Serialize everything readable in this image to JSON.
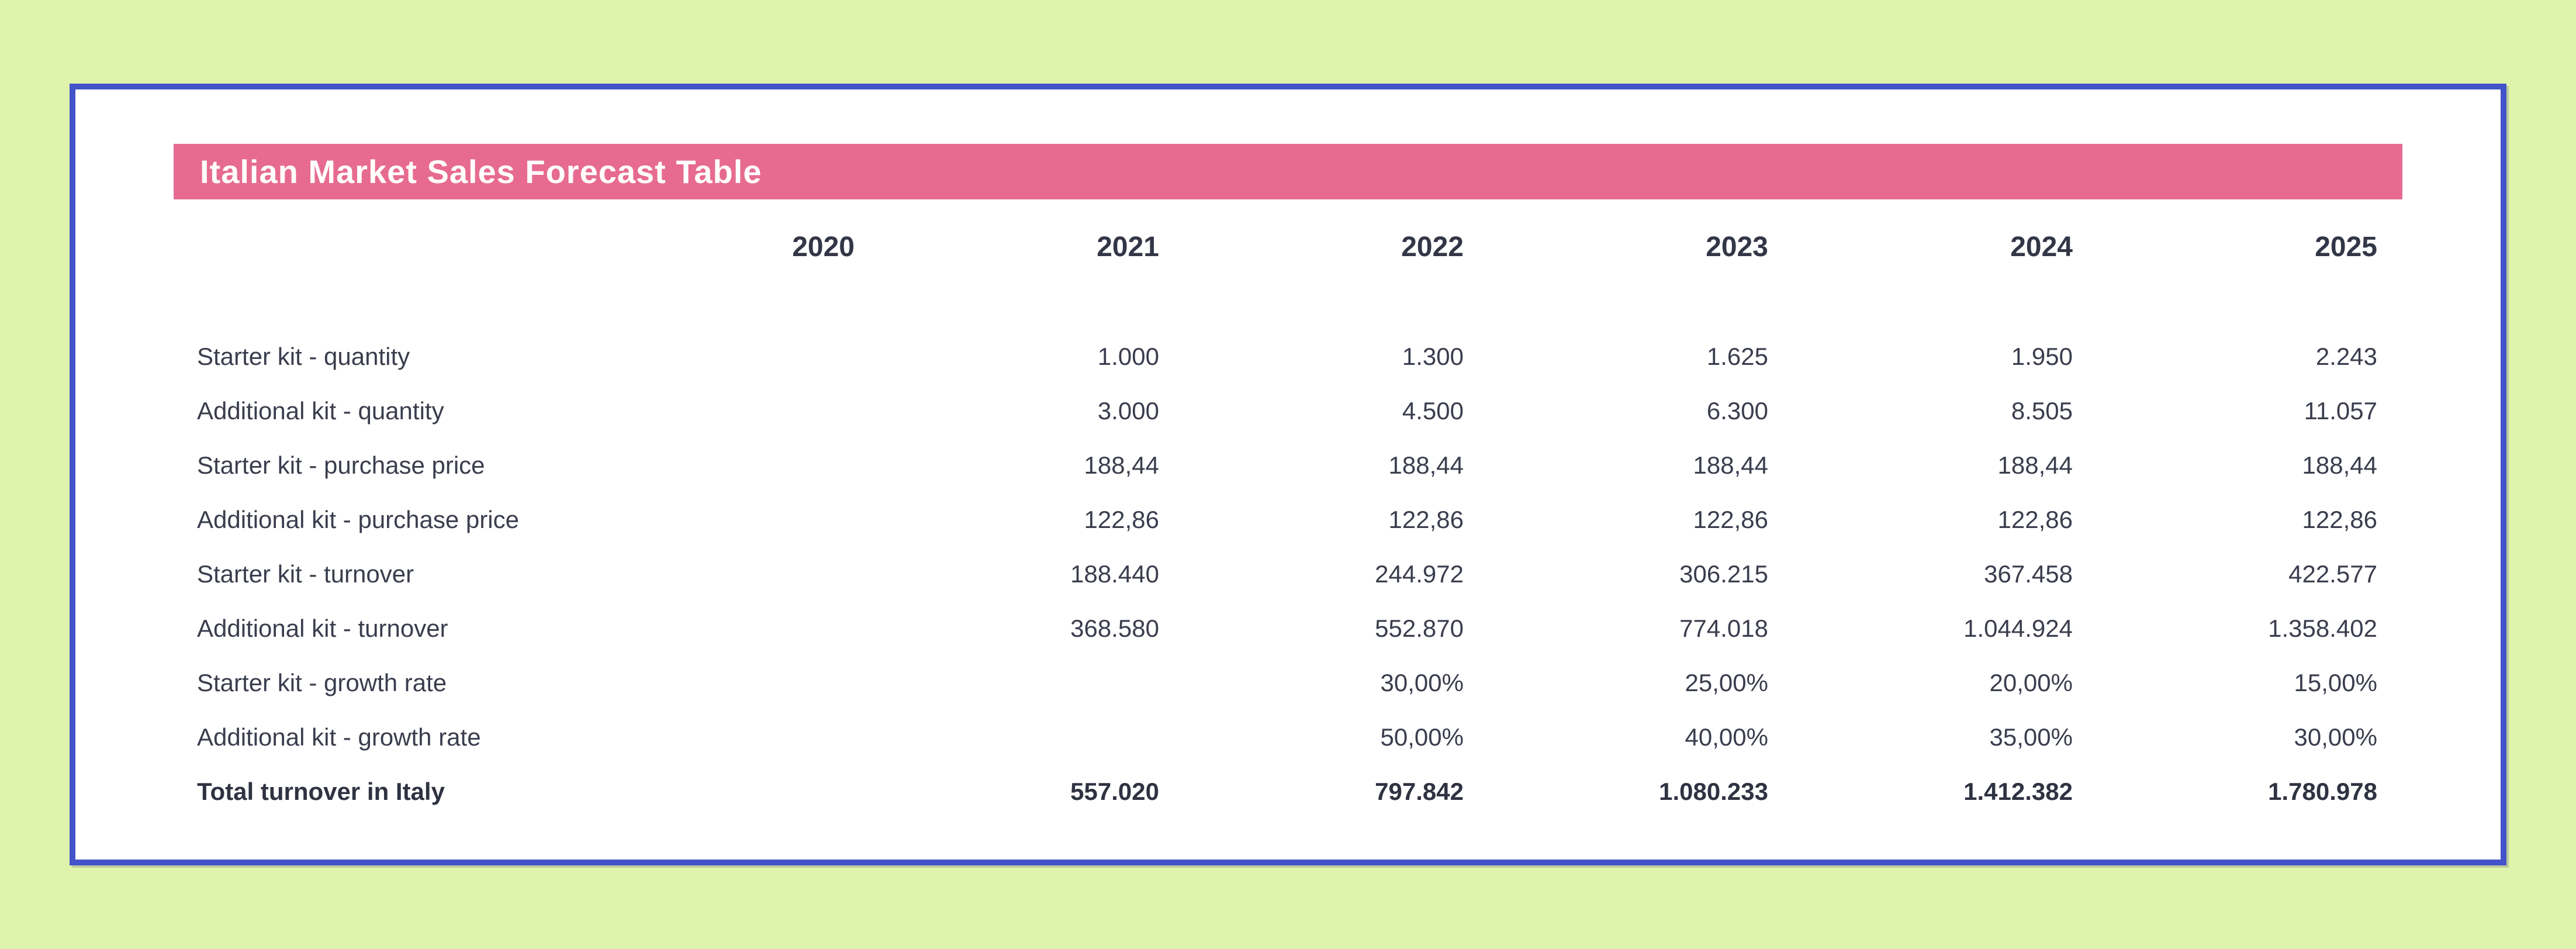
{
  "header": {
    "title": "Italian Market Sales Forecast Table"
  },
  "colors": {
    "page_background": "#def3ac",
    "card_border": "#4353c9",
    "card_background": "#ffffff",
    "title_bar_background": "#e76b90",
    "title_text": "#ffffff",
    "table_text": "#3a3d4d"
  },
  "chart_data": {
    "type": "table",
    "title": "Italian Market Sales Forecast Table",
    "columns": [
      "2020",
      "2021",
      "2022",
      "2023",
      "2024",
      "2025"
    ],
    "rows": [
      {
        "label": "Starter kit - quantity",
        "bold": false,
        "values": [
          "",
          "1.000",
          "1.300",
          "1.625",
          "1.950",
          "2.243"
        ]
      },
      {
        "label": "Additional kit - quantity",
        "bold": false,
        "values": [
          "",
          "3.000",
          "4.500",
          "6.300",
          "8.505",
          "11.057"
        ]
      },
      {
        "label": "Starter kit - purchase price",
        "bold": false,
        "values": [
          "",
          "188,44",
          "188,44",
          "188,44",
          "188,44",
          "188,44"
        ]
      },
      {
        "label": "Additional kit - purchase price",
        "bold": false,
        "values": [
          "",
          "122,86",
          "122,86",
          "122,86",
          "122,86",
          "122,86"
        ]
      },
      {
        "label": "Starter kit - turnover",
        "bold": false,
        "values": [
          "",
          "188.440",
          "244.972",
          "306.215",
          "367.458",
          "422.577"
        ]
      },
      {
        "label": "Additional kit - turnover",
        "bold": false,
        "values": [
          "",
          "368.580",
          "552.870",
          "774.018",
          "1.044.924",
          "1.358.402"
        ]
      },
      {
        "label": "Starter kit - growth rate",
        "bold": false,
        "values": [
          "",
          "",
          "30,00%",
          "25,00%",
          "20,00%",
          "15,00%"
        ]
      },
      {
        "label": "Additional kit - growth rate",
        "bold": false,
        "values": [
          "",
          "",
          "50,00%",
          "40,00%",
          "35,00%",
          "30,00%"
        ]
      },
      {
        "label": "Total turnover in Italy",
        "bold": true,
        "values": [
          "",
          "557.020",
          "797.842",
          "1.080.233",
          "1.412.382",
          "1.780.978"
        ]
      }
    ]
  }
}
